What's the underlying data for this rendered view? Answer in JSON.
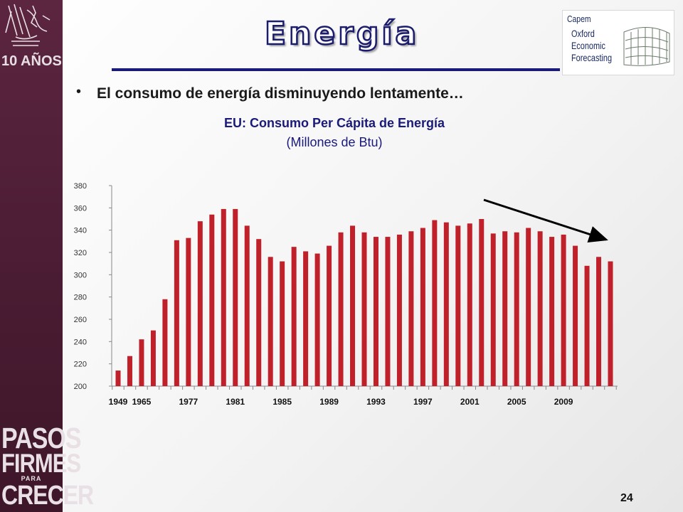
{
  "sidebar": {
    "top_logo_text": "10 AÑOS",
    "bottom_logo": {
      "line1": "PASOS",
      "line2": "FIRMES",
      "line3": "PARA",
      "line4": "CRECER"
    }
  },
  "header": {
    "title": "Energía",
    "logo": {
      "brand": "Capem",
      "line1": "Oxford",
      "line2": "Economic",
      "line3": "Forecasting"
    }
  },
  "bullet": {
    "text": "El consumo de energía disminuyendo lentamente…"
  },
  "chart_title": "EU: Consumo Per Cápita de Energía",
  "chart_subtitle": "(Millones de Btu)",
  "page_number": "24",
  "colors": {
    "bar": "#c0202a",
    "title_text": "#1a1a7a",
    "sidebar": "#4f1f37",
    "arrow": "#000000"
  },
  "chart_data": {
    "type": "bar",
    "title": "EU: Consumo Per Cápita de Energía",
    "subtitle": "(Millones de Btu)",
    "xlabel": "",
    "ylabel": "",
    "ylim": [
      200,
      380
    ],
    "yticks": [
      200,
      220,
      240,
      260,
      280,
      300,
      320,
      340,
      360,
      380
    ],
    "x_tick_labels": [
      "1949",
      "1965",
      "1977",
      "1981",
      "1985",
      "1989",
      "1993",
      "1997",
      "2001",
      "2005",
      "2009"
    ],
    "x_tick_label_start_bar": [
      0,
      2,
      6,
      10,
      14,
      18,
      22,
      26,
      30,
      34,
      38
    ],
    "values": [
      214,
      227,
      242,
      250,
      278,
      331,
      333,
      348,
      354,
      359,
      359,
      344,
      332,
      316,
      312,
      325,
      321,
      319,
      326,
      338,
      344,
      338,
      334,
      334,
      336,
      339,
      342,
      349,
      347,
      344,
      346,
      350,
      337,
      339,
      338,
      342,
      339,
      334,
      336,
      326,
      308,
      316,
      312
    ],
    "grid": false,
    "legend": "none",
    "annotation": "downward trend arrow toward final bars"
  }
}
